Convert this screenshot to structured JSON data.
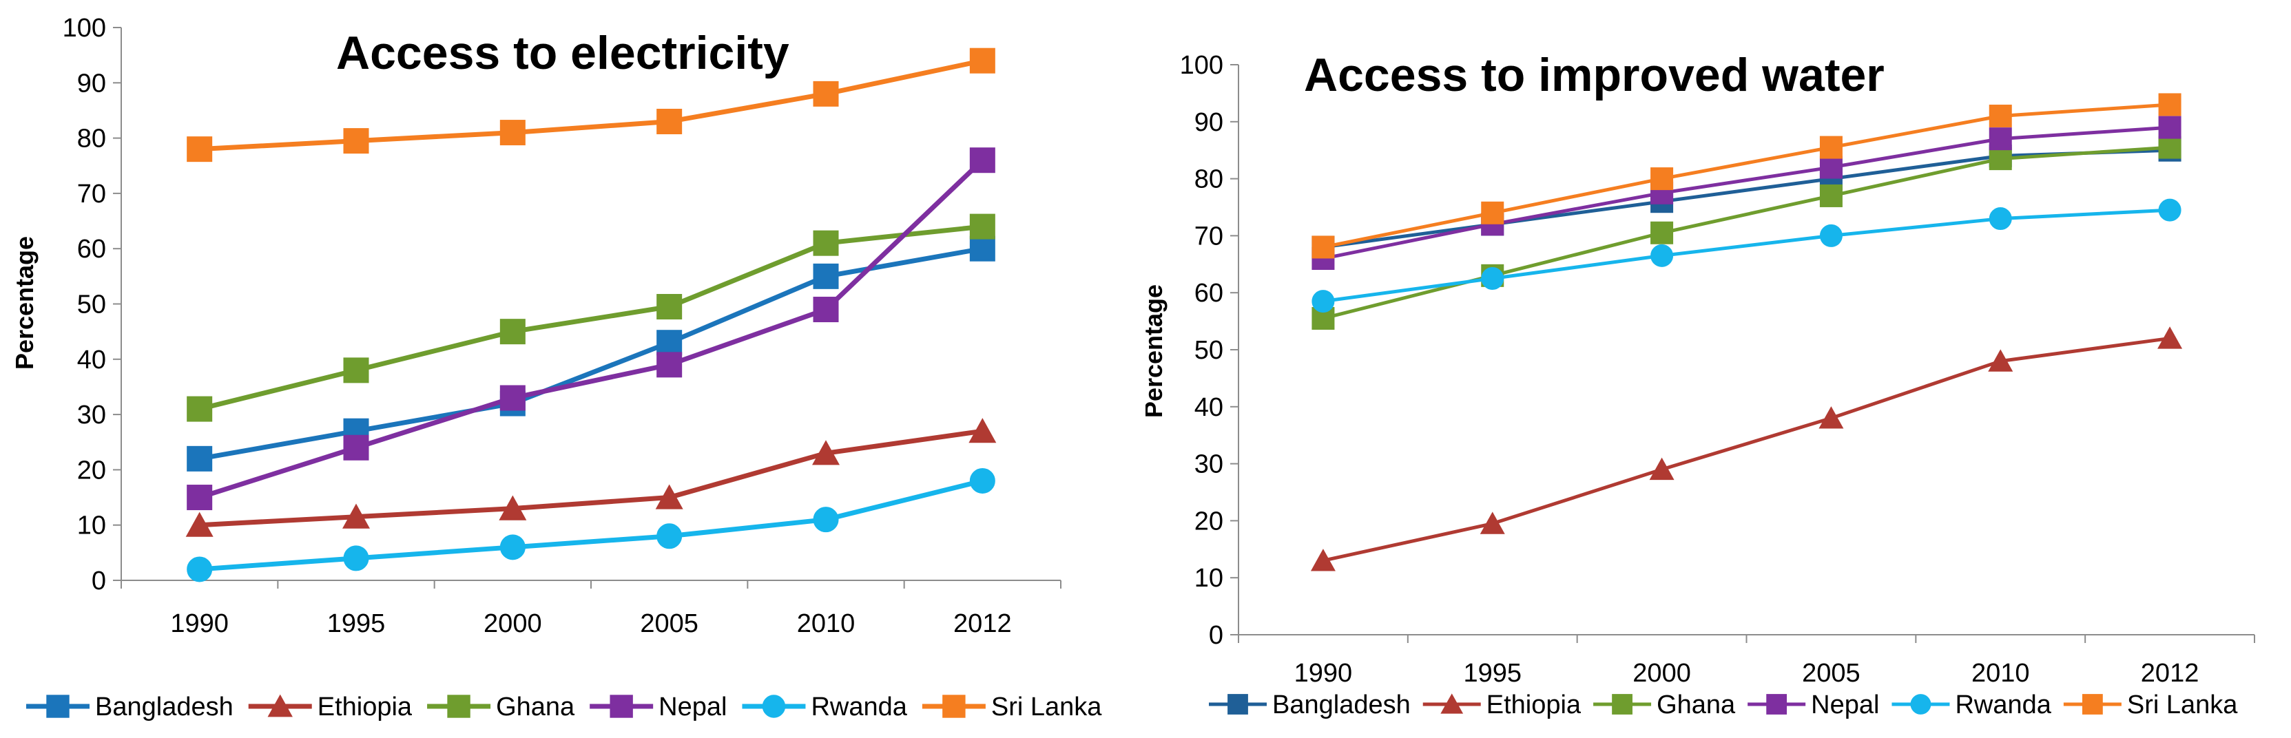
{
  "chart_data": [
    {
      "type": "line",
      "title": "Access to electricity",
      "xlabel": "",
      "ylabel": "Percentage",
      "ylim": [
        0,
        100
      ],
      "ystep": 10,
      "categories": [
        "1990",
        "1995",
        "2000",
        "2005",
        "2010",
        "2012"
      ],
      "series": [
        {
          "name": "Bangladesh",
          "color": "#1b75bb",
          "marker": "square",
          "values": [
            22,
            27,
            32,
            43,
            55,
            60
          ]
        },
        {
          "name": "Ethiopia",
          "color": "#b03a32",
          "marker": "triangle",
          "values": [
            10,
            11.5,
            13,
            15,
            23,
            27
          ]
        },
        {
          "name": "Ghana",
          "color": "#6f9d2e",
          "marker": "square",
          "values": [
            31,
            38,
            45,
            49.5,
            61,
            64
          ]
        },
        {
          "name": "Nepal",
          "color": "#7e2fa0",
          "marker": "square",
          "values": [
            15,
            24,
            33,
            39,
            49,
            76
          ]
        },
        {
          "name": "Rwanda",
          "color": "#16b5ec",
          "marker": "circle",
          "values": [
            2,
            4,
            6,
            8,
            11,
            18
          ]
        },
        {
          "name": "Sri Lanka",
          "color": "#f57e20",
          "marker": "square",
          "values": [
            78,
            79.5,
            81,
            83,
            88,
            94
          ]
        }
      ]
    },
    {
      "type": "line",
      "title": "Access to improved water",
      "xlabel": "",
      "ylabel": "Percentage",
      "ylim": [
        0,
        100
      ],
      "ystep": 10,
      "categories": [
        "1990",
        "1995",
        "2000",
        "2005",
        "2010",
        "2012"
      ],
      "series": [
        {
          "name": "Bangladesh",
          "color": "#1f5f97",
          "marker": "square",
          "values": [
            68,
            72,
            76,
            80,
            84,
            85
          ]
        },
        {
          "name": "Ethiopia",
          "color": "#b03a32",
          "marker": "triangle",
          "values": [
            13,
            19.5,
            29,
            38,
            48,
            52
          ]
        },
        {
          "name": "Ghana",
          "color": "#6f9d2e",
          "marker": "square",
          "values": [
            55.5,
            63,
            70.5,
            77,
            83.5,
            85.5
          ]
        },
        {
          "name": "Nepal",
          "color": "#7e2fa0",
          "marker": "square",
          "values": [
            66,
            72,
            77.5,
            82,
            87,
            89
          ]
        },
        {
          "name": "Rwanda",
          "color": "#16b5ec",
          "marker": "circle",
          "values": [
            58.5,
            62.5,
            66.5,
            70,
            73,
            74.5
          ]
        },
        {
          "name": "Sri Lanka",
          "color": "#f57e20",
          "marker": "square",
          "values": [
            68,
            74,
            80,
            85.5,
            91,
            93
          ]
        }
      ]
    }
  ]
}
